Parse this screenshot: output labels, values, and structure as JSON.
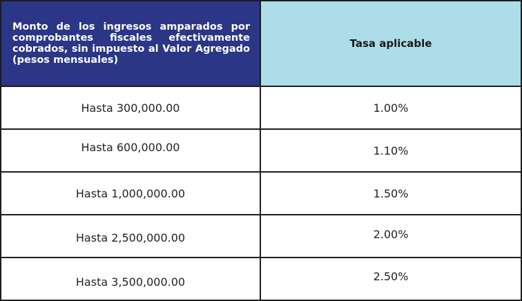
{
  "table": {
    "header": {
      "amount_label": "Monto de los ingresos amparados por comprobantes fiscales efectivamente cobrados, sin impuesto al Valor Agregado (pesos mensuales)",
      "rate_label": "Tasa aplicable"
    },
    "rows": [
      {
        "amount": "Hasta 300,000.00",
        "rate": "1.00%"
      },
      {
        "amount": "Hasta 600,000.00",
        "rate": "1.10%"
      },
      {
        "amount": "Hasta 1,000,000.00",
        "rate": "1.50%"
      },
      {
        "amount": "Hasta 2,500,000.00",
        "rate": "2.00%"
      },
      {
        "amount": "Hasta 3,500,000.00",
        "rate": "2.50%"
      }
    ],
    "colors": {
      "header_left_bg": "#2b3687",
      "header_right_bg": "#acdde8",
      "border": "#1c1c1c"
    }
  }
}
